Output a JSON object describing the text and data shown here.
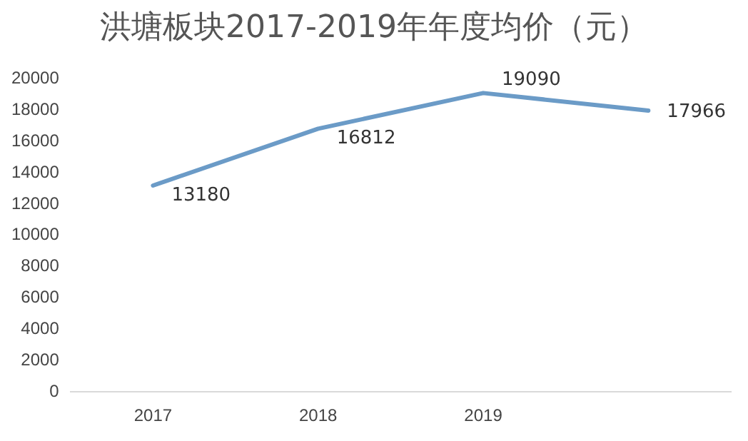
{
  "chart_data": {
    "type": "line",
    "title": "洪塘板块2017-2019年年度均价（元）",
    "categories": [
      "2017",
      "2018",
      "2019",
      null
    ],
    "series": [
      {
        "color": "#6b9bc7",
        "values": [
          13180,
          16812,
          19090,
          17966
        ]
      }
    ],
    "ylim": [
      0,
      20000
    ],
    "yticks": [
      0,
      2000,
      4000,
      6000,
      8000,
      10000,
      12000,
      14000,
      16000,
      18000,
      20000
    ],
    "grid": false,
    "legend": false,
    "marker": "none",
    "line_style": "solid",
    "data_labels": true
  }
}
